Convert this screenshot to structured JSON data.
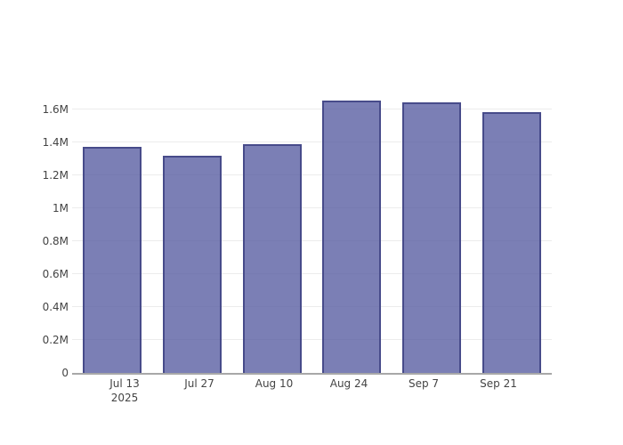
{
  "chart_data": {
    "type": "bar",
    "title": "",
    "xlabel": "",
    "ylabel": "",
    "legend": "none",
    "grid": true,
    "categories": [
      "Jul 13",
      "Jul 27",
      "Aug 10",
      "Aug 24",
      "Sep 7",
      "Sep 21"
    ],
    "category_sublabels": [
      "2025",
      "",
      "",
      "",
      "",
      ""
    ],
    "values": [
      1.37,
      1.32,
      1.39,
      1.65,
      1.64,
      1.58
    ],
    "values_absolute": [
      1370000,
      1320000,
      1390000,
      1650000,
      1640000,
      1580000
    ],
    "value_unit": "M",
    "ytick_values": [
      0,
      0.2,
      0.4,
      0.6,
      0.8,
      1.0,
      1.2,
      1.4,
      1.6
    ],
    "ytick_labels": [
      "0",
      "0.2M",
      "0.4M",
      "0.6M",
      "0.8M",
      "1M",
      "1.2M",
      "1.4M",
      "1.6M"
    ],
    "ylim": [
      0,
      1.787
    ],
    "colors": {
      "bar_fill": "rgba(90,95,162,0.80)",
      "bar_border": "#474b8a",
      "gridline": "#ececec",
      "axis_line": "#a8a8a8",
      "tick_text": "#444444",
      "background": "#ffffff"
    }
  }
}
